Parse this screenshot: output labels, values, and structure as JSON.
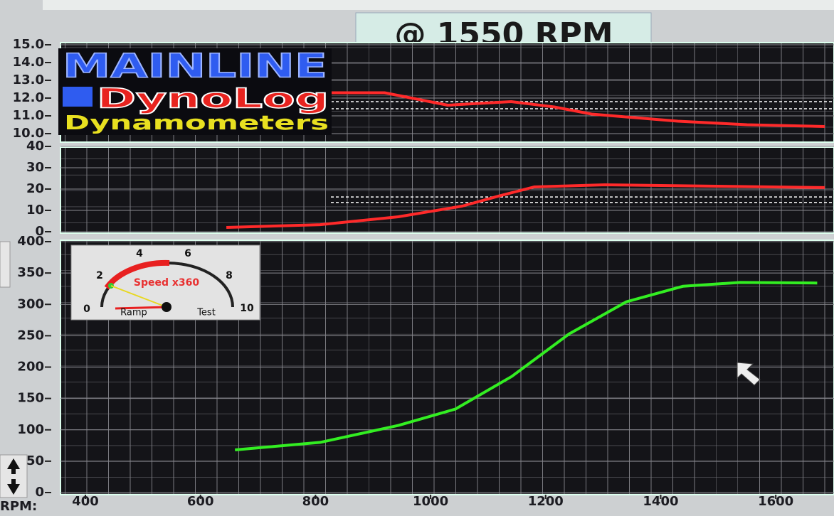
{
  "header": {
    "rpm_readout": "@ 1550 RPM"
  },
  "logo": {
    "brand": "MAINLINE",
    "product": "DynoLog",
    "maker": "Dynamometers"
  },
  "gauge": {
    "label": "Speed x360",
    "left_label": "Ramp",
    "right_label": "Test",
    "ticks": [
      0,
      2,
      4,
      6,
      8,
      10
    ]
  },
  "chart_data": [
    {
      "type": "line",
      "xlim": [
        400,
        1700
      ],
      "ylim": [
        10,
        15
      ],
      "yticks": [
        {
          "value": 10,
          "label": "10.0"
        },
        {
          "value": 11,
          "label": "11.0"
        },
        {
          "value": 12,
          "label": "12.0"
        },
        {
          "value": 13,
          "label": "13.0"
        },
        {
          "value": 14,
          "label": "14.0"
        },
        {
          "value": 15,
          "label": "15.0"
        }
      ],
      "reference_lines": [
        11.8,
        11.4
      ],
      "x": [
        825,
        920,
        1030,
        1140,
        1215,
        1280,
        1430,
        1550,
        1685
      ],
      "series": [
        {
          "color": "#ff2a2a",
          "values": [
            12.3,
            12.3,
            11.6,
            11.8,
            11.5,
            11.1,
            10.7,
            10.5,
            10.4
          ]
        }
      ]
    },
    {
      "type": "line",
      "xlim": [
        400,
        1700
      ],
      "ylim": [
        0,
        40
      ],
      "yticks": [
        0,
        10,
        20,
        30,
        40
      ],
      "reference_lines": [
        16.3,
        13.7
      ],
      "x": [
        645,
        808,
        944,
        1055,
        1118,
        1180,
        1303,
        1450,
        1685
      ],
      "series": [
        {
          "color": "#ff2a2a",
          "values": [
            2,
            3.3,
            7,
            12,
            16.7,
            21,
            22,
            21.5,
            20.7
          ]
        }
      ]
    },
    {
      "type": "line",
      "xlim": [
        400,
        1700
      ],
      "xlabel": "RPM:",
      "xticks": [
        400,
        600,
        800,
        1000,
        1200,
        1400,
        1600
      ],
      "ylim": [
        0,
        400
      ],
      "yticks": [
        0,
        50,
        100,
        150,
        200,
        250,
        300,
        350,
        400
      ],
      "x": [
        660,
        808,
        944,
        1043,
        1141,
        1241,
        1340,
        1439,
        1538,
        1672
      ],
      "series": [
        {
          "color": "#33ee22",
          "values": [
            68,
            80,
            107,
            133,
            185,
            253,
            304,
            329,
            335,
            334
          ]
        }
      ]
    }
  ]
}
